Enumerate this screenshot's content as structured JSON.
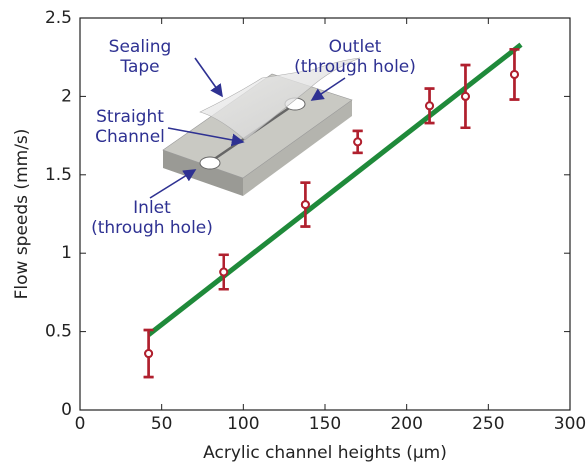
{
  "chart_data": {
    "type": "scatter",
    "x_label": "Acrylic channel heights (μm)",
    "y_label": "Flow speeds (mm/s)",
    "xlim": [
      0,
      300
    ],
    "xticks": [
      0,
      50,
      100,
      150,
      200,
      250,
      300
    ],
    "ylim": [
      0,
      2.5
    ],
    "yticks": [
      0,
      0.5,
      1,
      1.5,
      2,
      2.5
    ],
    "series": [
      {
        "type": "errorbar",
        "color": "#b0202e",
        "x": [
          42,
          88,
          138,
          170,
          214,
          236,
          266
        ],
        "values": [
          0.36,
          0.88,
          1.31,
          1.71,
          1.94,
          2.0,
          2.14
        ],
        "errors": [
          0.15,
          0.11,
          0.14,
          0.07,
          0.11,
          0.2,
          0.16
        ]
      },
      {
        "type": "line",
        "color": "#1f8a3a",
        "x": [
          42,
          270
        ],
        "values": [
          0.48,
          2.33
        ]
      }
    ],
    "annotations": [
      {
        "lines": [
          "Sealing",
          "Tape"
        ]
      },
      {
        "lines": [
          "Outlet",
          "(through hole)"
        ]
      },
      {
        "lines": [
          "Straight",
          "Channel"
        ]
      },
      {
        "lines": [
          "Inlet",
          "(through hole)"
        ]
      }
    ]
  }
}
